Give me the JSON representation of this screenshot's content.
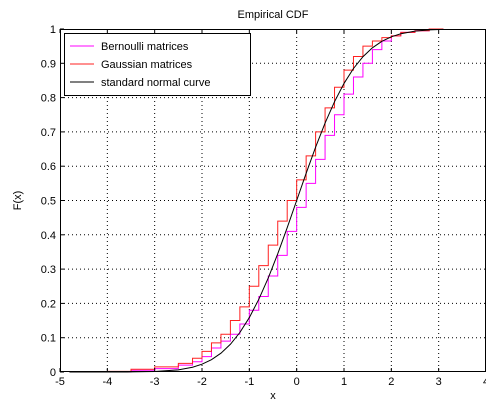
{
  "chart_data": {
    "type": "line",
    "title": "Empirical CDF",
    "xlabel": "x",
    "ylabel": "F(x)",
    "xlim": [
      -5,
      4
    ],
    "ylim": [
      0,
      1
    ],
    "x_ticks": [
      "-5",
      "-4",
      "-3",
      "-2",
      "-1",
      "0",
      "1",
      "2",
      "3",
      "4"
    ],
    "y_ticks": [
      "0",
      "0.1",
      "0.2",
      "0.3",
      "0.4",
      "0.5",
      "0.6",
      "0.7",
      "0.8",
      "0.9",
      "1"
    ],
    "grid": true,
    "legend_position": "top-left",
    "series": [
      {
        "name": "Bernoulli matrices",
        "color": "#ff00ff",
        "x": [
          -4.8,
          -4.0,
          -3.5,
          -3.0,
          -2.5,
          -2.2,
          -2.0,
          -1.8,
          -1.6,
          -1.4,
          -1.2,
          -1.0,
          -0.8,
          -0.6,
          -0.4,
          -0.2,
          0.0,
          0.2,
          0.4,
          0.6,
          0.8,
          1.0,
          1.2,
          1.4,
          1.6,
          1.8,
          2.0,
          2.2,
          2.5,
          2.8,
          3.1
        ],
        "y": [
          0.0,
          0.0,
          0.005,
          0.01,
          0.02,
          0.03,
          0.045,
          0.07,
          0.09,
          0.11,
          0.14,
          0.18,
          0.22,
          0.28,
          0.34,
          0.41,
          0.48,
          0.55,
          0.62,
          0.69,
          0.75,
          0.81,
          0.86,
          0.9,
          0.94,
          0.965,
          0.98,
          0.99,
          0.995,
          1.0,
          1.0
        ]
      },
      {
        "name": "Gaussian matrices",
        "color": "#ff2020",
        "x": [
          -4.8,
          -4.0,
          -3.5,
          -3.0,
          -2.5,
          -2.2,
          -2.0,
          -1.8,
          -1.6,
          -1.4,
          -1.2,
          -1.0,
          -0.8,
          -0.6,
          -0.4,
          -0.2,
          0.0,
          0.2,
          0.4,
          0.6,
          0.8,
          1.0,
          1.2,
          1.4,
          1.6,
          1.8,
          2.0,
          2.2,
          2.5,
          2.8,
          3.1
        ],
        "y": [
          0.0,
          0.002,
          0.008,
          0.015,
          0.025,
          0.04,
          0.06,
          0.085,
          0.11,
          0.15,
          0.19,
          0.25,
          0.31,
          0.37,
          0.44,
          0.5,
          0.56,
          0.63,
          0.7,
          0.77,
          0.83,
          0.88,
          0.92,
          0.95,
          0.965,
          0.975,
          0.98,
          0.99,
          0.995,
          1.0,
          1.0
        ]
      },
      {
        "name": "standard normal curve",
        "color": "#000000",
        "x": [
          -4.8,
          -4.0,
          -3.5,
          -3.0,
          -2.5,
          -2.2,
          -2.0,
          -1.8,
          -1.6,
          -1.4,
          -1.2,
          -1.0,
          -0.8,
          -0.6,
          -0.4,
          -0.2,
          0.0,
          0.2,
          0.4,
          0.6,
          0.8,
          1.0,
          1.2,
          1.4,
          1.6,
          1.8,
          2.0,
          2.2,
          2.5,
          2.8,
          3.1
        ],
        "y": [
          0.0,
          0.0,
          0.0002,
          0.0013,
          0.0062,
          0.0139,
          0.0228,
          0.0359,
          0.0548,
          0.0808,
          0.1151,
          0.1587,
          0.2119,
          0.2743,
          0.3446,
          0.4207,
          0.5,
          0.5793,
          0.6554,
          0.7257,
          0.7881,
          0.8413,
          0.8849,
          0.9192,
          0.9452,
          0.9641,
          0.9772,
          0.9861,
          0.9938,
          0.9974,
          0.999
        ]
      }
    ]
  }
}
